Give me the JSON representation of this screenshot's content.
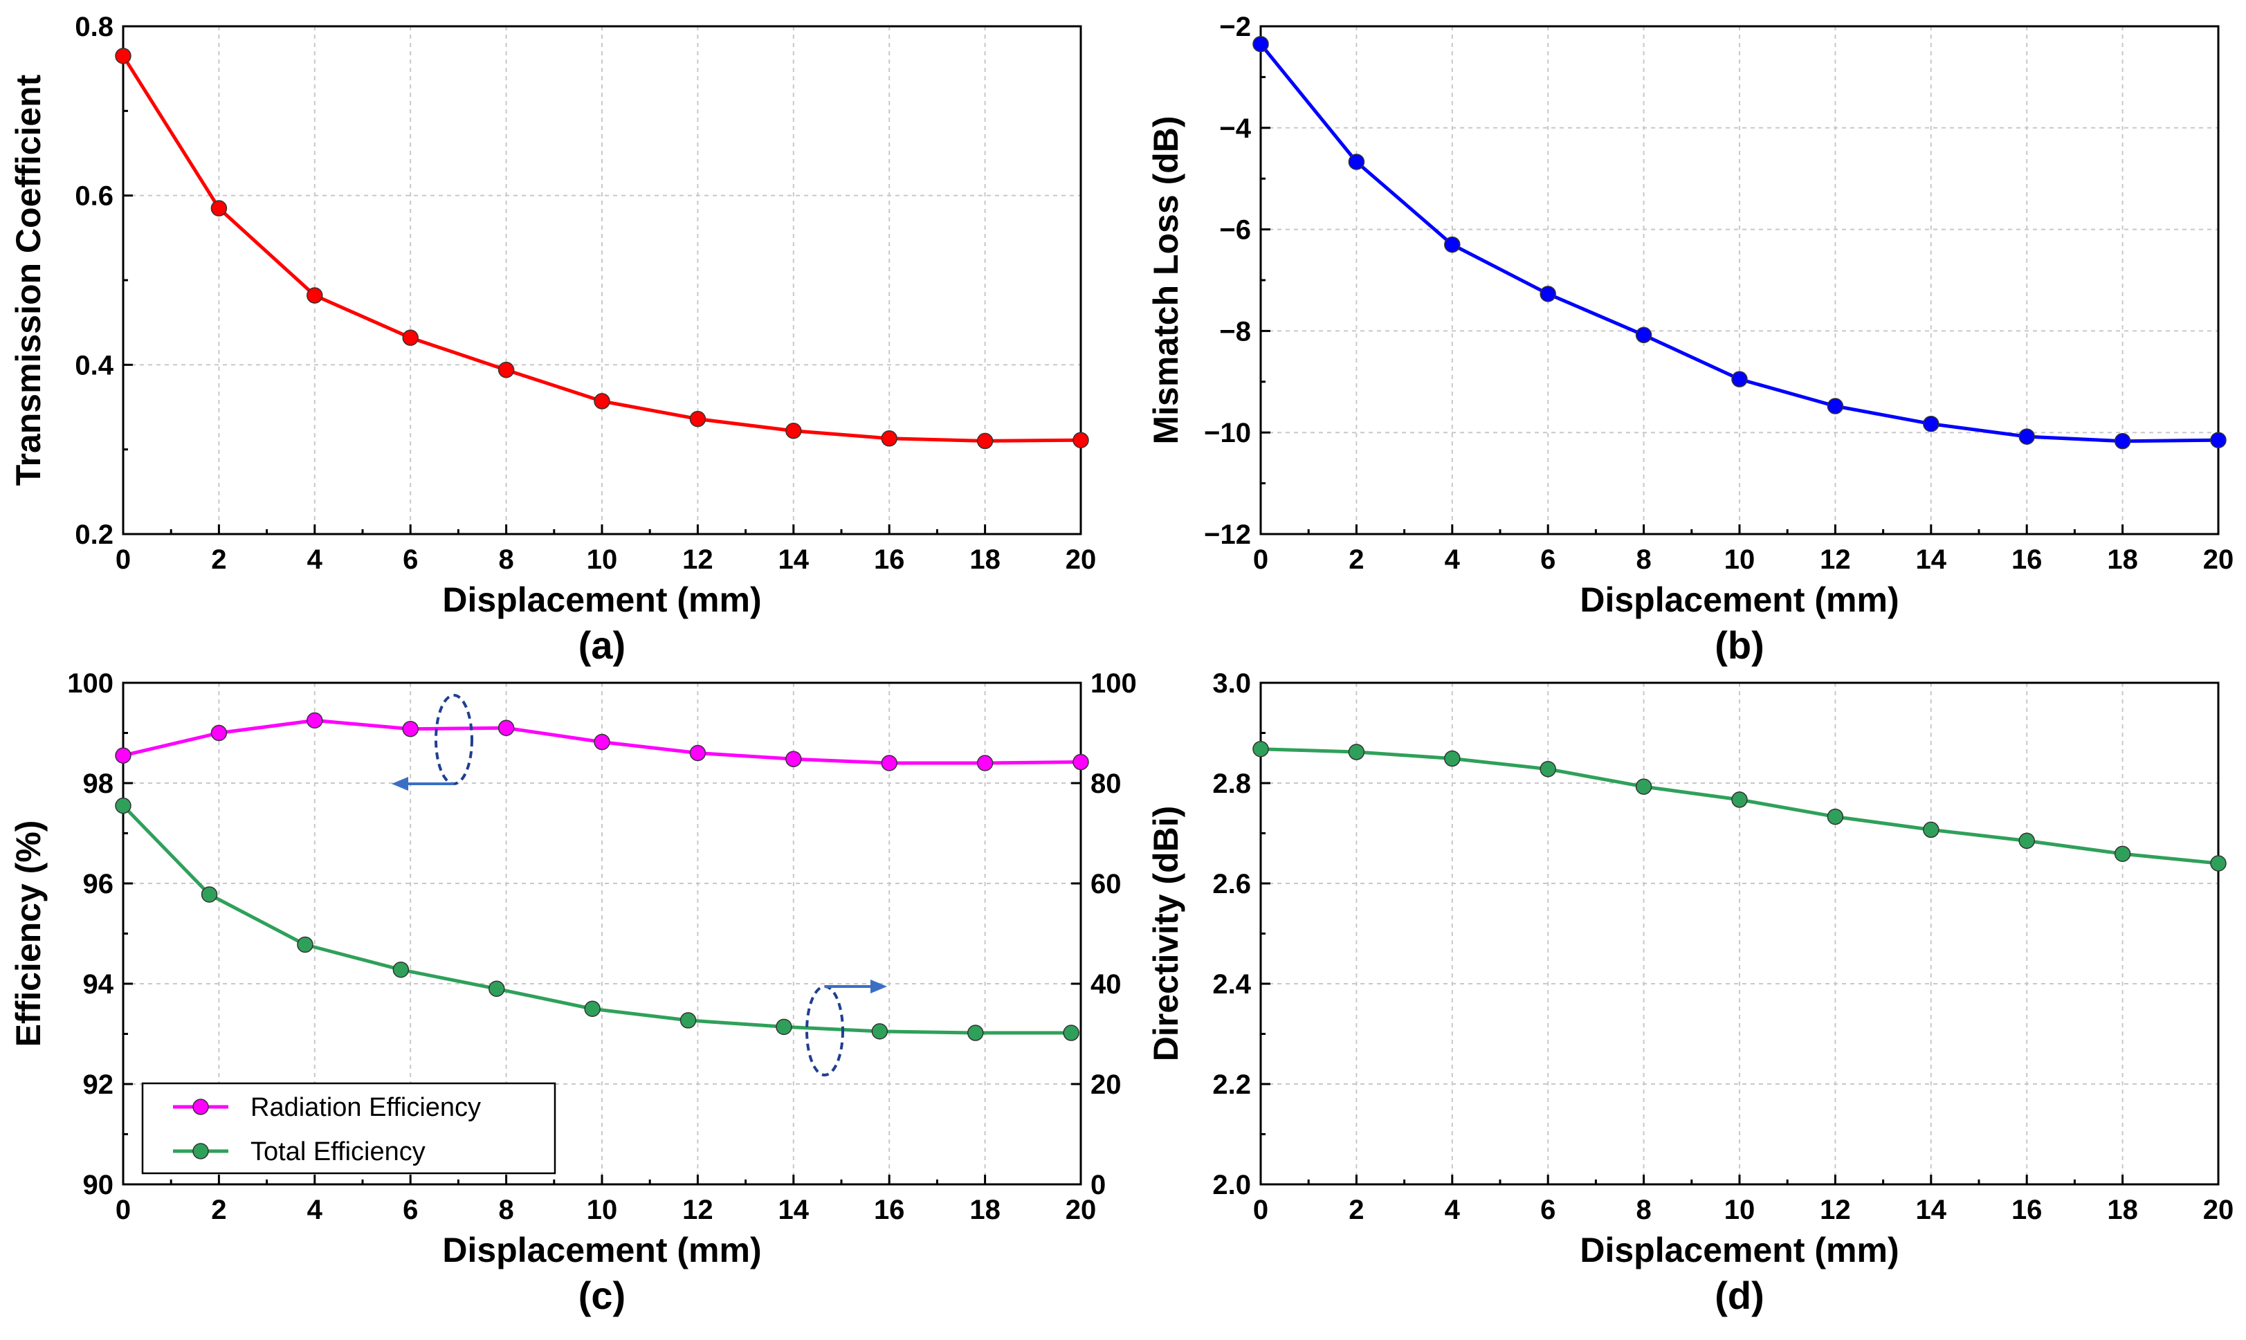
{
  "chart_data": [
    {
      "id": "a",
      "type": "line",
      "panel_label": "(a)",
      "title": "",
      "xlabel": "Displacement (mm)",
      "ylabel": "Transmission Coefficient",
      "xlim": [
        0,
        20
      ],
      "ylim": [
        0.2,
        0.8
      ],
      "xticks": [
        "0",
        "2",
        "4",
        "6",
        "8",
        "10",
        "12",
        "14",
        "16",
        "18",
        "20"
      ],
      "yticks": [
        "0.2",
        "0.4",
        "0.6",
        "0.8"
      ],
      "grid": true,
      "series": [
        {
          "name": "Transmission Coefficient",
          "color": "#ff0000",
          "x": [
            0,
            2,
            4,
            6,
            8,
            10,
            12,
            14,
            16,
            18,
            20
          ],
          "y": [
            0.765,
            0.585,
            0.482,
            0.432,
            0.394,
            0.357,
            0.336,
            0.322,
            0.313,
            0.31,
            0.311
          ]
        }
      ]
    },
    {
      "id": "b",
      "type": "line",
      "panel_label": "(b)",
      "title": "",
      "xlabel": "Displacement (mm)",
      "ylabel": "Mismatch Loss (dB)",
      "xlim": [
        0,
        20
      ],
      "ylim": [
        -12,
        -2
      ],
      "xticks": [
        "0",
        "2",
        "4",
        "6",
        "8",
        "10",
        "12",
        "14",
        "16",
        "18",
        "20"
      ],
      "yticks": [
        "−12",
        "−10",
        "−8",
        "−6",
        "−4",
        "−2"
      ],
      "grid": true,
      "series": [
        {
          "name": "Mismatch Loss",
          "color": "#0000ff",
          "x": [
            0,
            2,
            4,
            6,
            8,
            10,
            12,
            14,
            16,
            18,
            20
          ],
          "y": [
            -2.35,
            -4.67,
            -6.3,
            -7.27,
            -8.08,
            -8.95,
            -9.48,
            -9.83,
            -10.08,
            -10.17,
            -10.15
          ]
        }
      ]
    },
    {
      "id": "c",
      "type": "line",
      "panel_label": "(c)",
      "title": "",
      "xlabel": "Displacement (mm)",
      "ylabel": "Efficiency (%)",
      "xlim": [
        0,
        20
      ],
      "ylim": [
        90,
        100
      ],
      "y2lim": [
        0,
        100
      ],
      "xticks": [
        "0",
        "2",
        "4",
        "6",
        "8",
        "10",
        "12",
        "14",
        "16",
        "18",
        "20"
      ],
      "yticks": [
        "90",
        "92",
        "94",
        "96",
        "98",
        "100"
      ],
      "y2ticks": [
        "0",
        "20",
        "40",
        "60",
        "80",
        "100"
      ],
      "grid": true,
      "legend": "bottom-left",
      "series": [
        {
          "name": "Radiation Efficiency",
          "color": "#ff00ff",
          "axis": "left",
          "x": [
            0,
            2,
            4,
            6,
            8,
            10,
            12,
            14,
            16,
            18,
            20
          ],
          "y": [
            98.55,
            99.0,
            99.25,
            99.08,
            99.1,
            98.82,
            98.6,
            98.48,
            98.4,
            98.4,
            98.42
          ]
        },
        {
          "name": "Total Efficiency",
          "color": "#2fa05a",
          "axis": "right",
          "x": [
            0,
            1.8,
            3.8,
            5.8,
            7.8,
            9.8,
            11.8,
            13.8,
            15.8,
            17.8,
            19.8
          ],
          "y": [
            75.5,
            57.8,
            47.8,
            42.8,
            39.0,
            35.0,
            32.7,
            31.4,
            30.5,
            30.2,
            30.2
          ]
        }
      ]
    },
    {
      "id": "d",
      "type": "line",
      "panel_label": "(d)",
      "title": "",
      "xlabel": "Displacement (mm)",
      "ylabel": "Directivity (dBi)",
      "xlim": [
        0,
        20
      ],
      "ylim": [
        2.0,
        3.0
      ],
      "xticks": [
        "0",
        "2",
        "4",
        "6",
        "8",
        "10",
        "12",
        "14",
        "16",
        "18",
        "20"
      ],
      "yticks": [
        "2.0",
        "2.2",
        "2.4",
        "2.6",
        "2.8",
        "3.0"
      ],
      "grid": true,
      "series": [
        {
          "name": "Directivity",
          "color": "#2fa05a",
          "x": [
            0,
            2,
            4,
            6,
            8,
            10,
            12,
            14,
            16,
            18,
            20
          ],
          "y": [
            2.868,
            2.862,
            2.849,
            2.828,
            2.793,
            2.767,
            2.733,
            2.707,
            2.685,
            2.659,
            2.64
          ]
        }
      ]
    }
  ]
}
